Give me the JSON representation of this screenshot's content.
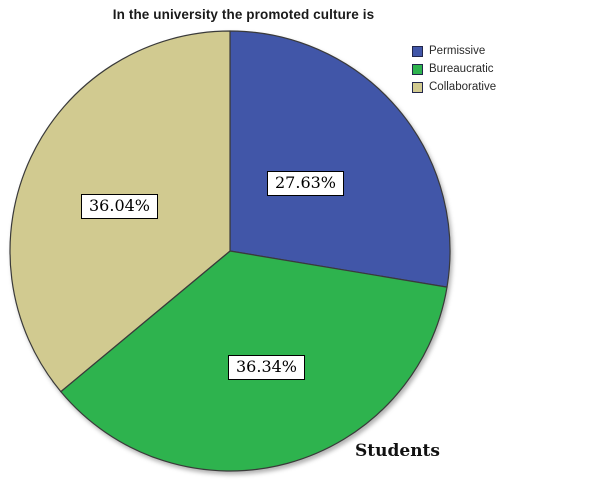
{
  "chart_data": {
    "type": "pie",
    "title": "In the university the promoted culture is",
    "slices": [
      {
        "label": "Permissive",
        "value": 27.63,
        "display": "27.63%",
        "color": "#4156a8"
      },
      {
        "label": "Bureaucratic",
        "value": 36.34,
        "display": "36.34%",
        "color": "#2eb34e"
      },
      {
        "label": "Collaborative",
        "value": 36.04,
        "display": "36.04%",
        "color": "#d1ca90"
      }
    ],
    "start_angle_deg": 0,
    "direction": "clockwise",
    "outline_color": "#3a3a3a",
    "label_box": {
      "background": "#ffffff",
      "border": "#000000"
    },
    "legend": {
      "position": "top-right"
    },
    "footer_label": "Students"
  }
}
